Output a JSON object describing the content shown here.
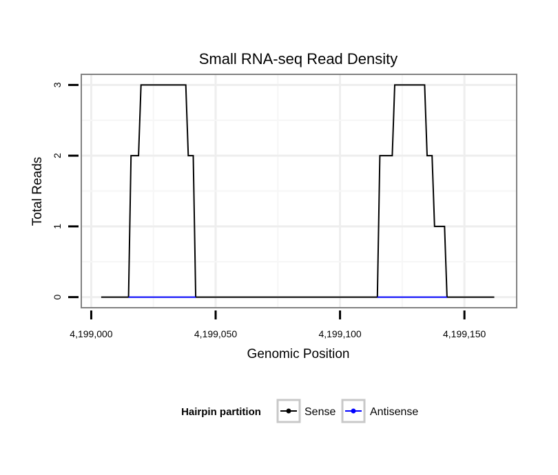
{
  "chart_data": {
    "type": "line",
    "title": "Small RNA-seq Read Density",
    "xlabel": "Genomic Position",
    "ylabel": "Total Reads",
    "xlim": [
      4198996,
      4199171
    ],
    "ylim": [
      -0.15,
      3.15
    ],
    "x_ticks": [
      4199000,
      4199050,
      4199100,
      4199150
    ],
    "x_tick_labels": [
      "4,199,000",
      "4,199,050",
      "4,199,100",
      "4,199,150"
    ],
    "y_ticks": [
      0,
      1,
      2,
      3
    ],
    "y_tick_labels": [
      "0",
      "1",
      "2",
      "3"
    ],
    "grid": true,
    "legend": {
      "title": "Hairpin partition",
      "position": "bottom",
      "entries": [
        "Sense",
        "Antisense"
      ]
    },
    "series": [
      {
        "name": "Sense",
        "color": "#000000",
        "x": [
          4199004,
          4199015,
          4199016,
          4199019,
          4199020,
          4199038,
          4199039,
          4199041,
          4199042,
          4199115,
          4199116,
          4199121,
          4199122,
          4199134,
          4199135,
          4199137,
          4199138,
          4199142,
          4199143,
          4199162
        ],
        "y": [
          0,
          0,
          2,
          2,
          3,
          3,
          2,
          2,
          0,
          0,
          2,
          2,
          3,
          3,
          2,
          2,
          1,
          1,
          0,
          0
        ]
      },
      {
        "name": "Antisense",
        "color": "#0000ff",
        "x": [
          4199015,
          4199042,
          4199115,
          4199143
        ],
        "y": [
          0,
          0,
          0,
          0
        ],
        "segments": [
          [
            0,
            1
          ],
          [
            2,
            3
          ]
        ]
      }
    ]
  }
}
